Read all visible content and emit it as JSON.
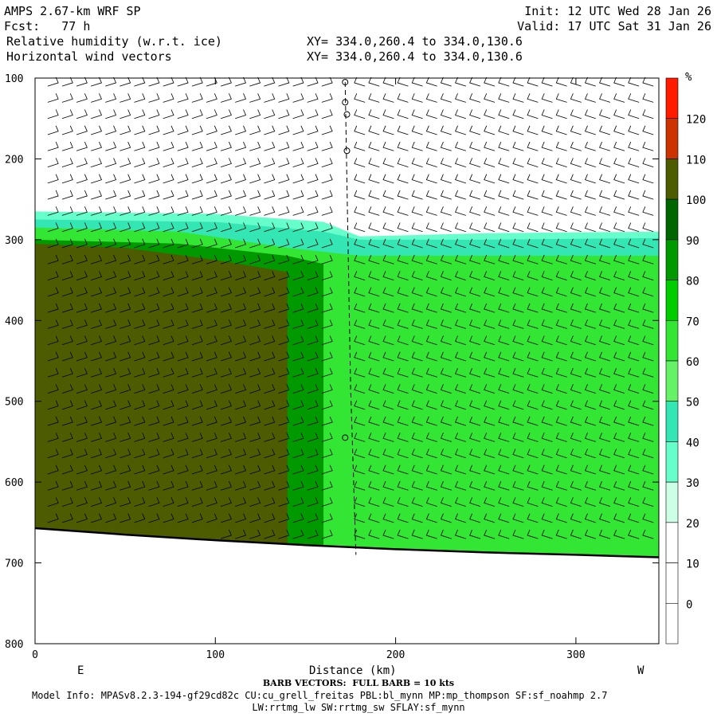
{
  "header": {
    "model": "AMPS 2.67-km WRF SP",
    "fcst": "Fcst:   77 h",
    "init": "Init: 12 UTC Wed 28 Jan 26",
    "valid": "Valid: 17 UTC Sat 31 Jan 26",
    "field1": "Relative humidity (w.r.t. ice)",
    "field2": "Horizontal wind vectors",
    "xy1": "XY= 334.0,260.4 to 334.0,130.6",
    "xy2": "XY= 334.0,260.4 to 334.0,130.6"
  },
  "footer": {
    "barb_note": "BARB VECTORS:  FULL BARB = 10 kts",
    "model_info": "Model Info: MPASv8.2.3-194-gf29cd82c CU:cu_grell_freitas PBL:bl_mynn MP:mp_thompson SF:sf_noahmp 2.7",
    "model_info2": "LW:rrtmg_lw SW:rrtmg_sw SFLAY:sf_mynn"
  },
  "chart_data": {
    "type": "heatmap",
    "title": "Relative humidity (w.r.t. ice)",
    "xlabel": "Distance (km)",
    "x_end_labels": [
      "E",
      "W"
    ],
    "ylabel": "",
    "xlim": [
      0,
      346
    ],
    "ylim": [
      800,
      100
    ],
    "x_ticks": [
      0,
      100,
      200,
      300
    ],
    "y_ticks": [
      100,
      200,
      300,
      400,
      500,
      600,
      700,
      800
    ],
    "colorbar": {
      "unit": "%",
      "levels": [
        0,
        10,
        20,
        30,
        40,
        50,
        60,
        70,
        80,
        90,
        100,
        110,
        120
      ],
      "colors": [
        "#ffffff",
        "#ffffff",
        "#ffffff",
        "#ccffe6",
        "#66ffcc",
        "#33e6b3",
        "#66f266",
        "#33e633",
        "#00cc00",
        "#009900",
        "#006600",
        "#4d5c00",
        "#cc3300",
        "#ff1a00"
      ]
    },
    "terrain_pressure": [
      [
        0,
        657
      ],
      [
        50,
        665
      ],
      [
        100,
        672
      ],
      [
        150,
        678
      ],
      [
        200,
        683
      ],
      [
        250,
        687
      ],
      [
        300,
        690
      ],
      [
        346,
        693
      ]
    ],
    "rh_regions": [
      {
        "level": 30,
        "top": [
          [
            0,
            265
          ],
          [
            100,
            268
          ],
          [
            160,
            278
          ],
          [
            180,
            296
          ],
          [
            250,
            292
          ],
          [
            346,
            290
          ]
        ]
      },
      {
        "level": 40,
        "top": [
          [
            0,
            275
          ],
          [
            100,
            278
          ],
          [
            160,
            290
          ],
          [
            180,
            300
          ],
          [
            250,
            300
          ],
          [
            346,
            298
          ]
        ]
      },
      {
        "level": 60,
        "top": [
          [
            0,
            285
          ],
          [
            80,
            290
          ],
          [
            140,
            310
          ],
          [
            180,
            320
          ],
          [
            346,
            320
          ]
        ]
      },
      {
        "level": 80,
        "top": [
          [
            0,
            300
          ],
          [
            80,
            305
          ],
          [
            140,
            320
          ],
          [
            160,
            330
          ]
        ]
      },
      {
        "level": 100,
        "top": [
          [
            0,
            305
          ],
          [
            50,
            310
          ],
          [
            100,
            325
          ],
          [
            140,
            340
          ]
        ]
      }
    ],
    "wind_columns_km": [
      7,
      15,
      23,
      31,
      39,
      47,
      55,
      63,
      71,
      79,
      87,
      95,
      103,
      111,
      119,
      127,
      135,
      143,
      151,
      159,
      167,
      175,
      183,
      191,
      199,
      207,
      215,
      223,
      231,
      239,
      247,
      255,
      263,
      271,
      279,
      287,
      295,
      303,
      311,
      319,
      327,
      335,
      343
    ],
    "wind_levels_hpa": [
      110,
      130,
      150,
      170,
      190,
      210,
      230,
      250,
      270,
      290,
      310,
      330,
      350,
      370,
      390,
      410,
      430,
      450,
      470,
      490,
      510,
      530,
      550,
      570,
      590,
      610,
      630,
      650,
      670,
      690
    ],
    "calm_markers": [
      [
        172,
        105
      ],
      [
        172,
        130
      ],
      [
        173,
        145
      ],
      [
        173,
        190
      ],
      [
        172,
        545
      ]
    ]
  }
}
